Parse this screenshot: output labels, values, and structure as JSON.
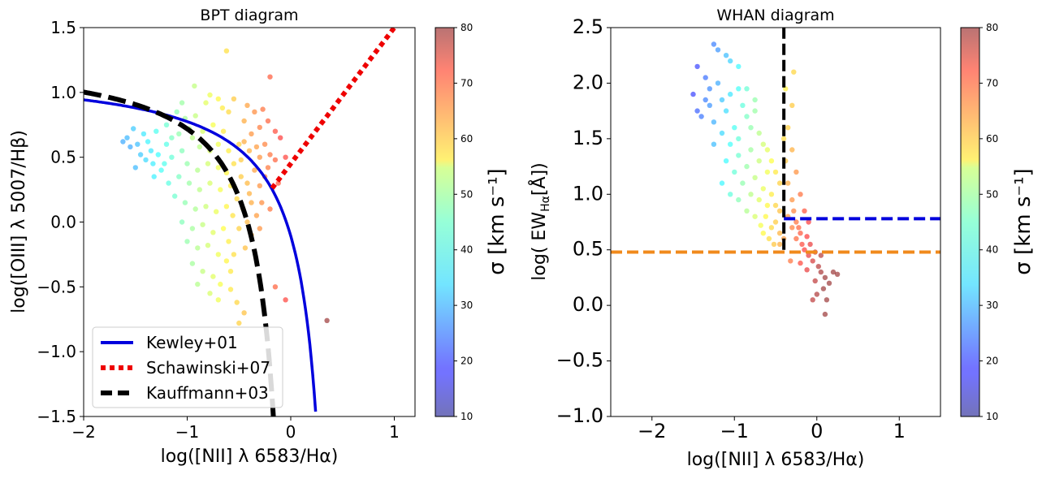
{
  "chart_data": [
    {
      "type": "scatter",
      "title": "BPT diagram",
      "xlabel": "log([NII] λ 6583/Hα)",
      "ylabel": "log([OIII] λ 5007/Hβ)",
      "xlim": [
        -2.0,
        1.2
      ],
      "ylim": [
        -1.5,
        1.5
      ],
      "xticks": [
        -2,
        -1,
        0,
        1
      ],
      "xtick_labels": [
        "−2",
        "−1",
        "0",
        "1"
      ],
      "yticks": [
        -1.5,
        -1.0,
        -0.5,
        0.0,
        0.5,
        1.0,
        1.5
      ],
      "ytick_labels": [
        "−1.5",
        "−1.0",
        "−0.5",
        "0.0",
        "0.5",
        "1.0",
        "1.5"
      ],
      "legend": {
        "placement": "lower-left",
        "entries": [
          {
            "label": "Kewley+01",
            "color": "#0000dd",
            "style": "solid"
          },
          {
            "label": "Schawinski+07",
            "color": "#ee0000",
            "style": "dotted"
          },
          {
            "label": "Kauffmann+03",
            "color": "#000000",
            "style": "dashed"
          }
        ]
      },
      "curves": [
        {
          "name": "Kewley+01",
          "formula": "0.61/(x-0.47)+1.19",
          "x_range": [
            -2.0,
            0.24
          ],
          "color": "#0000dd"
        },
        {
          "name": "Schawinski+07",
          "formula": "1.05*x+0.45",
          "x_range": [
            -0.18,
            1.0
          ],
          "color": "#ee0000"
        },
        {
          "name": "Kauffmann+03",
          "formula": "0.61/(x-0.05)+1.3",
          "x_range": [
            -2.0,
            -0.14
          ],
          "color": "#000000"
        }
      ],
      "points": [
        [
          -0.62,
          1.32
        ],
        [
          -0.93,
          1.05
        ],
        [
          -0.2,
          1.12
        ],
        [
          -0.78,
          0.98
        ],
        [
          -0.55,
          0.95
        ],
        [
          -1.05,
          0.92
        ],
        [
          -0.42,
          0.9
        ],
        [
          -0.35,
          0.85
        ],
        [
          -0.27,
          0.87
        ],
        [
          -0.66,
          0.88
        ],
        [
          -0.22,
          0.78
        ],
        [
          -0.3,
          0.73
        ],
        [
          -0.38,
          0.68
        ],
        [
          -0.15,
          0.7
        ],
        [
          -0.1,
          0.65
        ],
        [
          -0.25,
          0.6
        ],
        [
          -0.33,
          0.58
        ],
        [
          -0.45,
          0.62
        ],
        [
          -0.2,
          0.52
        ],
        [
          -0.3,
          0.5
        ],
        [
          -0.15,
          0.48
        ],
        [
          -0.05,
          0.5
        ],
        [
          -0.22,
          0.42
        ],
        [
          -0.35,
          0.4
        ],
        [
          -0.25,
          0.35
        ],
        [
          -0.12,
          0.3
        ],
        [
          -0.3,
          0.28
        ],
        [
          -0.4,
          0.22
        ],
        [
          -0.28,
          0.15
        ],
        [
          -0.2,
          0.1
        ],
        [
          -0.33,
          0.05
        ],
        [
          -0.42,
          0.0
        ],
        [
          -0.3,
          -0.05
        ],
        [
          -0.38,
          -0.1
        ],
        [
          -1.52,
          0.72
        ],
        [
          -1.58,
          0.65
        ],
        [
          -1.48,
          0.6
        ],
        [
          -1.42,
          0.68
        ],
        [
          -1.35,
          0.55
        ],
        [
          -1.62,
          0.62
        ],
        [
          -1.4,
          0.48
        ],
        [
          -1.3,
          0.7
        ],
        [
          -1.25,
          0.4
        ],
        [
          -1.32,
          0.35
        ],
        [
          -1.18,
          0.3
        ],
        [
          -1.5,
          0.42
        ],
        [
          -1.1,
          0.85
        ],
        [
          -1.2,
          0.6
        ],
        [
          -1.05,
          0.55
        ],
        [
          -0.95,
          0.65
        ],
        [
          -0.85,
          0.7
        ],
        [
          -0.75,
          0.75
        ],
        [
          -0.65,
          0.7
        ],
        [
          -0.6,
          0.55
        ],
        [
          -0.5,
          0.6
        ],
        [
          -1.15,
          0.5
        ],
        [
          -1.0,
          0.45
        ],
        [
          -0.9,
          0.4
        ],
        [
          -0.8,
          0.45
        ],
        [
          -0.7,
          0.42
        ],
        [
          -0.62,
          0.38
        ],
        [
          -0.55,
          0.45
        ],
        [
          -0.48,
          0.35
        ],
        [
          -1.08,
          0.35
        ],
        [
          -0.98,
          0.3
        ],
        [
          -0.88,
          0.25
        ],
        [
          -0.78,
          0.3
        ],
        [
          -0.68,
          0.25
        ],
        [
          -0.58,
          0.28
        ],
        [
          -0.52,
          0.18
        ],
        [
          -1.12,
          0.2
        ],
        [
          -1.02,
          0.15
        ],
        [
          -0.92,
          0.1
        ],
        [
          -0.82,
          0.12
        ],
        [
          -0.72,
          0.08
        ],
        [
          -0.62,
          0.12
        ],
        [
          -0.56,
          0.05
        ],
        [
          -1.05,
          0.0
        ],
        [
          -0.95,
          -0.05
        ],
        [
          -0.85,
          -0.02
        ],
        [
          -0.75,
          -0.08
        ],
        [
          -0.65,
          -0.05
        ],
        [
          -0.6,
          -0.15
        ],
        [
          -1.0,
          -0.15
        ],
        [
          -0.9,
          -0.2
        ],
        [
          -0.8,
          -0.18
        ],
        [
          -0.7,
          -0.25
        ],
        [
          -0.62,
          -0.3
        ],
        [
          -0.95,
          -0.32
        ],
        [
          -0.85,
          -0.38
        ],
        [
          -0.75,
          -0.42
        ],
        [
          -0.68,
          -0.48
        ],
        [
          -0.9,
          -0.48
        ],
        [
          -0.78,
          -0.55
        ],
        [
          -0.7,
          -0.6
        ],
        [
          -0.58,
          -0.52
        ],
        [
          -0.52,
          -0.62
        ],
        [
          -0.45,
          -0.7
        ],
        [
          -0.5,
          -0.78
        ],
        [
          -0.88,
          0.58
        ],
        [
          -0.78,
          0.55
        ],
        [
          -0.7,
          0.6
        ],
        [
          -1.08,
          0.68
        ],
        [
          -0.98,
          0.72
        ],
        [
          -1.22,
          0.45
        ],
        [
          -1.28,
          0.52
        ],
        [
          -0.15,
          -0.5
        ],
        [
          -0.05,
          -0.6
        ],
        [
          0.35,
          -0.76
        ],
        [
          -0.82,
          0.92
        ],
        [
          -0.7,
          0.95
        ],
        [
          -0.6,
          0.85
        ],
        [
          -0.45,
          0.78
        ],
        [
          -0.4,
          0.55
        ],
        [
          -0.48,
          0.48
        ],
        [
          -0.42,
          0.3
        ],
        [
          -0.38,
          0.15
        ],
        [
          -0.46,
          0.1
        ],
        [
          -0.5,
          -0.05
        ],
        [
          -0.44,
          -0.2
        ],
        [
          -0.55,
          -0.25
        ],
        [
          -0.58,
          -0.38
        ],
        [
          -1.38,
          0.62
        ],
        [
          -1.45,
          0.52
        ],
        [
          -1.55,
          0.58
        ],
        [
          -1.33,
          0.45
        ],
        [
          -1.2,
          0.75
        ],
        [
          -1.15,
          0.65
        ],
        [
          -1.02,
          0.8
        ],
        [
          -0.92,
          0.82
        ]
      ],
      "colorbar": {
        "label": "σ [km s⁻¹]",
        "range": [
          10,
          80
        ],
        "ticks": [
          10,
          20,
          30,
          40,
          50,
          60,
          70,
          80
        ]
      }
    },
    {
      "type": "scatter",
      "title": "WHAN diagram",
      "xlabel": "log([NII] λ 6583/Hα)",
      "ylabel": "log( EW",
      "ylabel_sub": "Hα",
      "ylabel_end": "[Å])",
      "xlim": [
        -2.5,
        1.5
      ],
      "ylim": [
        -1.0,
        2.5
      ],
      "xticks": [
        -2,
        -1,
        0,
        1
      ],
      "xtick_labels": [
        "−2",
        "−1",
        "0",
        "1"
      ],
      "yticks": [
        -1.0,
        -0.5,
        0.0,
        0.5,
        1.0,
        1.5,
        2.0,
        2.5
      ],
      "ytick_labels": [
        "−1.0",
        "−0.5",
        "0.0",
        "0.5",
        "1.0",
        "1.5",
        "2.0",
        "2.5"
      ],
      "lines": [
        {
          "name": "vertical-black",
          "x": -0.4,
          "y_range": [
            0.5,
            2.5
          ],
          "color": "#000000",
          "style": "dashed"
        },
        {
          "name": "horizontal-blue",
          "y": 0.78,
          "x_range": [
            -0.4,
            1.5
          ],
          "color": "#0000dd",
          "style": "dashed"
        },
        {
          "name": "horizontal-orange",
          "y": 0.48,
          "x_range": [
            -2.5,
            1.5
          ],
          "color": "#f08a1c",
          "style": "dashed"
        }
      ],
      "points": [
        [
          -1.25,
          2.35
        ],
        [
          -1.2,
          2.3
        ],
        [
          -1.1,
          2.25
        ],
        [
          -1.05,
          2.2
        ],
        [
          -0.95,
          2.15
        ],
        [
          -1.45,
          2.15
        ],
        [
          -1.35,
          2.05
        ],
        [
          -1.5,
          1.9
        ],
        [
          -1.45,
          1.75
        ],
        [
          -1.4,
          1.7
        ],
        [
          -1.3,
          1.95
        ],
        [
          -1.2,
          2.0
        ],
        [
          -1.15,
          1.85
        ],
        [
          -1.05,
          1.9
        ],
        [
          -0.95,
          1.95
        ],
        [
          -0.9,
          1.8
        ],
        [
          -0.85,
          1.7
        ],
        [
          -0.8,
          1.6
        ],
        [
          -0.75,
          1.75
        ],
        [
          -0.7,
          1.55
        ],
        [
          -0.65,
          1.45
        ],
        [
          -0.6,
          1.4
        ],
        [
          -0.55,
          1.3
        ],
        [
          -0.5,
          1.2
        ],
        [
          -0.45,
          1.1
        ],
        [
          -1.25,
          1.65
        ],
        [
          -1.15,
          1.55
        ],
        [
          -1.05,
          1.45
        ],
        [
          -0.95,
          1.35
        ],
        [
          -0.85,
          1.25
        ],
        [
          -0.75,
          1.15
        ],
        [
          -0.65,
          1.05
        ],
        [
          -1.1,
          1.3
        ],
        [
          -1.0,
          1.2
        ],
        [
          -0.9,
          1.1
        ],
        [
          -0.8,
          1.0
        ],
        [
          -0.7,
          0.95
        ],
        [
          -0.6,
          0.9
        ],
        [
          -1.0,
          1.6
        ],
        [
          -0.95,
          1.5
        ],
        [
          -1.1,
          1.75
        ],
        [
          -0.8,
          1.4
        ],
        [
          -0.7,
          1.3
        ],
        [
          -0.6,
          1.2
        ],
        [
          -0.55,
          1.0
        ],
        [
          -0.5,
          0.9
        ],
        [
          -0.45,
          0.85
        ],
        [
          -0.5,
          0.75
        ],
        [
          -0.45,
          0.65
        ],
        [
          -0.55,
          0.7
        ],
        [
          -0.62,
          0.8
        ],
        [
          -0.68,
          0.72
        ],
        [
          -0.4,
          1.5
        ],
        [
          -0.38,
          1.3
        ],
        [
          -0.35,
          1.1
        ],
        [
          -0.3,
          0.95
        ],
        [
          -0.28,
          0.85
        ],
        [
          -0.25,
          0.75
        ],
        [
          -0.22,
          0.7
        ],
        [
          -0.2,
          0.65
        ],
        [
          -0.35,
          0.8
        ],
        [
          -0.3,
          0.7
        ],
        [
          -0.25,
          0.6
        ],
        [
          -0.18,
          0.55
        ],
        [
          -0.15,
          0.5
        ],
        [
          -0.1,
          0.45
        ],
        [
          -0.05,
          0.4
        ],
        [
          -0.08,
          0.55
        ],
        [
          -0.12,
          0.62
        ],
        [
          -0.02,
          0.48
        ],
        [
          0.02,
          0.35
        ],
        [
          0.05,
          0.3
        ],
        [
          0.1,
          0.25
        ],
        [
          0.15,
          0.2
        ],
        [
          0.2,
          0.3
        ],
        [
          0.25,
          0.28
        ],
        [
          0.08,
          0.15
        ],
        [
          0.0,
          0.1
        ],
        [
          -0.05,
          0.05
        ],
        [
          0.12,
          0.05
        ],
        [
          0.1,
          -0.08
        ],
        [
          -0.1,
          0.75
        ],
        [
          -0.15,
          0.85
        ],
        [
          -0.2,
          1.0
        ],
        [
          -0.25,
          1.2
        ],
        [
          -0.3,
          1.4
        ],
        [
          -0.35,
          1.6
        ],
        [
          -0.3,
          1.8
        ],
        [
          -0.28,
          2.1
        ],
        [
          -0.38,
          1.95
        ],
        [
          -0.32,
          0.4
        ],
        [
          -0.2,
          0.38
        ],
        [
          -0.12,
          0.32
        ],
        [
          -0.02,
          0.22
        ],
        [
          0.05,
          0.45
        ],
        [
          -0.45,
          0.55
        ],
        [
          -0.4,
          0.6
        ],
        [
          -0.85,
          1.95
        ],
        [
          -0.75,
          1.85
        ],
        [
          -1.35,
          1.85
        ],
        [
          -1.25,
          1.45
        ],
        [
          -1.3,
          1.8
        ],
        [
          -1.05,
          1.0
        ],
        [
          -0.95,
          0.95
        ],
        [
          -0.85,
          0.85
        ],
        [
          -0.75,
          0.8
        ],
        [
          -1.15,
          1.1
        ],
        [
          -0.65,
          0.65
        ],
        [
          -0.58,
          0.6
        ],
        [
          -0.52,
          0.55
        ]
      ],
      "colorbar": {
        "label": "σ [km s⁻¹]",
        "range": [
          10,
          80
        ],
        "ticks": [
          10,
          20,
          30,
          40,
          50,
          60,
          70,
          80
        ]
      }
    }
  ]
}
